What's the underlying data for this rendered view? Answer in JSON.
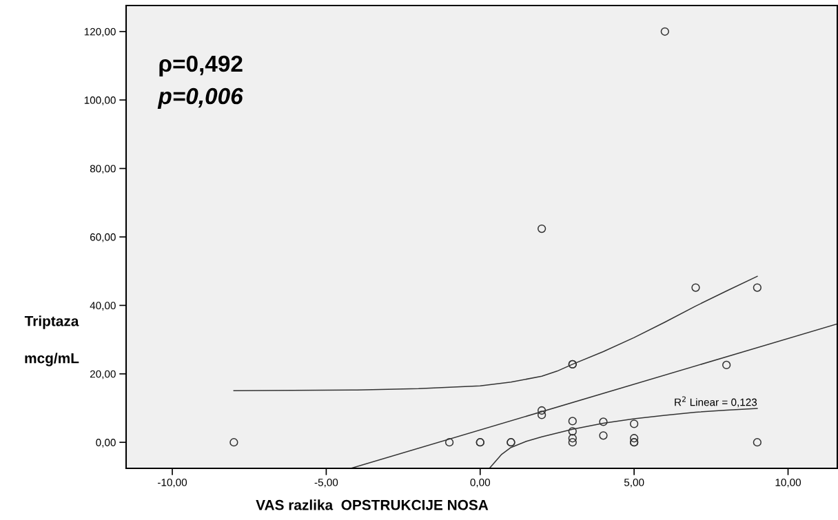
{
  "chart_data": {
    "type": "scatter",
    "xlabel": "VAS razlika  OPSTRUKCIJE NOSA",
    "ylabel": "Triptaza\n\nmcg/mL",
    "annotations": [
      "ρ=0,492",
      "p=0,006",
      {
        "text": "R$^{2}$ Linear = 0,123",
        "x": 9,
        "y": 10
      }
    ],
    "xlim": [
      -11.5,
      11.6
    ],
    "ylim": [
      -7.6,
      127.6
    ],
    "xticks": [
      {
        "value": -10,
        "label": "-10,00"
      },
      {
        "value": -5,
        "label": "-5,00"
      },
      {
        "value": 0,
        "label": "0,00"
      },
      {
        "value": 5,
        "label": "5,00"
      },
      {
        "value": 10,
        "label": "10,00"
      }
    ],
    "yticks": [
      {
        "value": 0,
        "label": "0,00"
      },
      {
        "value": 20,
        "label": "20,00"
      },
      {
        "value": 40,
        "label": "40,00"
      },
      {
        "value": 60,
        "label": "60,00"
      },
      {
        "value": 80,
        "label": "80,00"
      },
      {
        "value": 100,
        "label": "100,00"
      },
      {
        "value": 120,
        "label": "120,00"
      }
    ],
    "grid": false,
    "legend": false,
    "series": [
      {
        "marker": "circle",
        "color": "#333333",
        "x": [
          -8,
          -1,
          0,
          0,
          1,
          1,
          2,
          2,
          2,
          3,
          3,
          3,
          3,
          3,
          3,
          4,
          4,
          5,
          5,
          5,
          5,
          6,
          7,
          8,
          9,
          9
        ],
        "values": [
          0,
          0,
          0,
          0,
          0,
          0,
          9.3,
          8,
          62.4,
          22.8,
          22.8,
          6.2,
          3.2,
          1.2,
          0,
          6,
          2,
          5.4,
          1.2,
          0,
          0,
          120,
          45.2,
          22.6,
          45.2,
          0
        ]
      },
      {
        "type": "line",
        "color": "#333333",
        "x": [
          -4.2,
          11.6
        ],
        "values": [
          -7.6,
          34.6
        ]
      },
      {
        "type": "line",
        "color": "#333333",
        "x": [
          -8,
          -4,
          -2,
          0,
          1,
          2,
          2.5,
          3,
          4,
          5,
          6,
          7,
          8,
          9
        ],
        "values": [
          15.1,
          15.3,
          15.7,
          16.5,
          17.6,
          19.3,
          20.8,
          22.8,
          26.5,
          30.6,
          35.1,
          39.8,
          44.2,
          48.5
        ]
      },
      {
        "type": "line",
        "color": "#333333",
        "x": [
          0.3,
          0.7,
          1,
          1.5,
          2,
          3,
          4,
          5,
          6,
          7,
          8,
          9
        ],
        "values": [
          -7.6,
          -3.5,
          -1.5,
          0.3,
          1.6,
          3.8,
          5.6,
          6.9,
          7.9,
          8.8,
          9.4,
          9.9
        ]
      }
    ]
  }
}
